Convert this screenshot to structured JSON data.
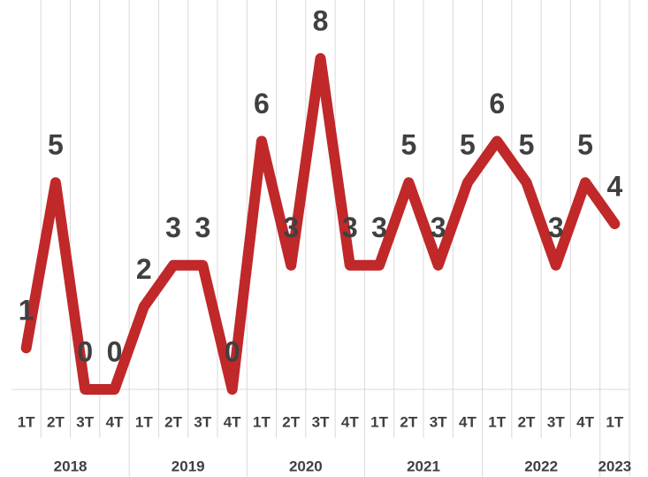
{
  "chart_data": {
    "type": "line",
    "category_groups": [
      {
        "name": "2018",
        "categories": [
          "1T",
          "2T",
          "3T",
          "4T"
        ]
      },
      {
        "name": "2019",
        "categories": [
          "1T",
          "2T",
          "3T",
          "4T"
        ]
      },
      {
        "name": "2020",
        "categories": [
          "1T",
          "2T",
          "3T",
          "4T"
        ]
      },
      {
        "name": "2021",
        "categories": [
          "1T",
          "2T",
          "3T",
          "4T"
        ]
      },
      {
        "name": "2022",
        "categories": [
          "1T",
          "2T",
          "3T",
          "4T"
        ]
      },
      {
        "name": "2023",
        "categories": [
          "1T"
        ]
      }
    ],
    "values": [
      1,
      5,
      0,
      0,
      2,
      3,
      3,
      0,
      6,
      3,
      8,
      3,
      3,
      5,
      3,
      5,
      6,
      5,
      3,
      5,
      4
    ],
    "color": "#c0282a",
    "ylim": [
      0,
      8
    ],
    "grid": true,
    "data_labels": true
  }
}
